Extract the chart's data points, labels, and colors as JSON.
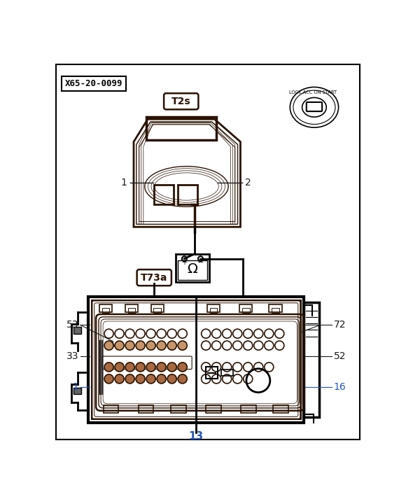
{
  "title_label": "X65-20-0099",
  "connector_top_label": "T2s",
  "connector_bot_label": "T73a",
  "bg_color": "#ffffff",
  "border_color": "#000000",
  "dark_brown": "#2a1200",
  "blue": "#2255bb",
  "dark": "#1a1a1a",
  "gray": "#666666"
}
